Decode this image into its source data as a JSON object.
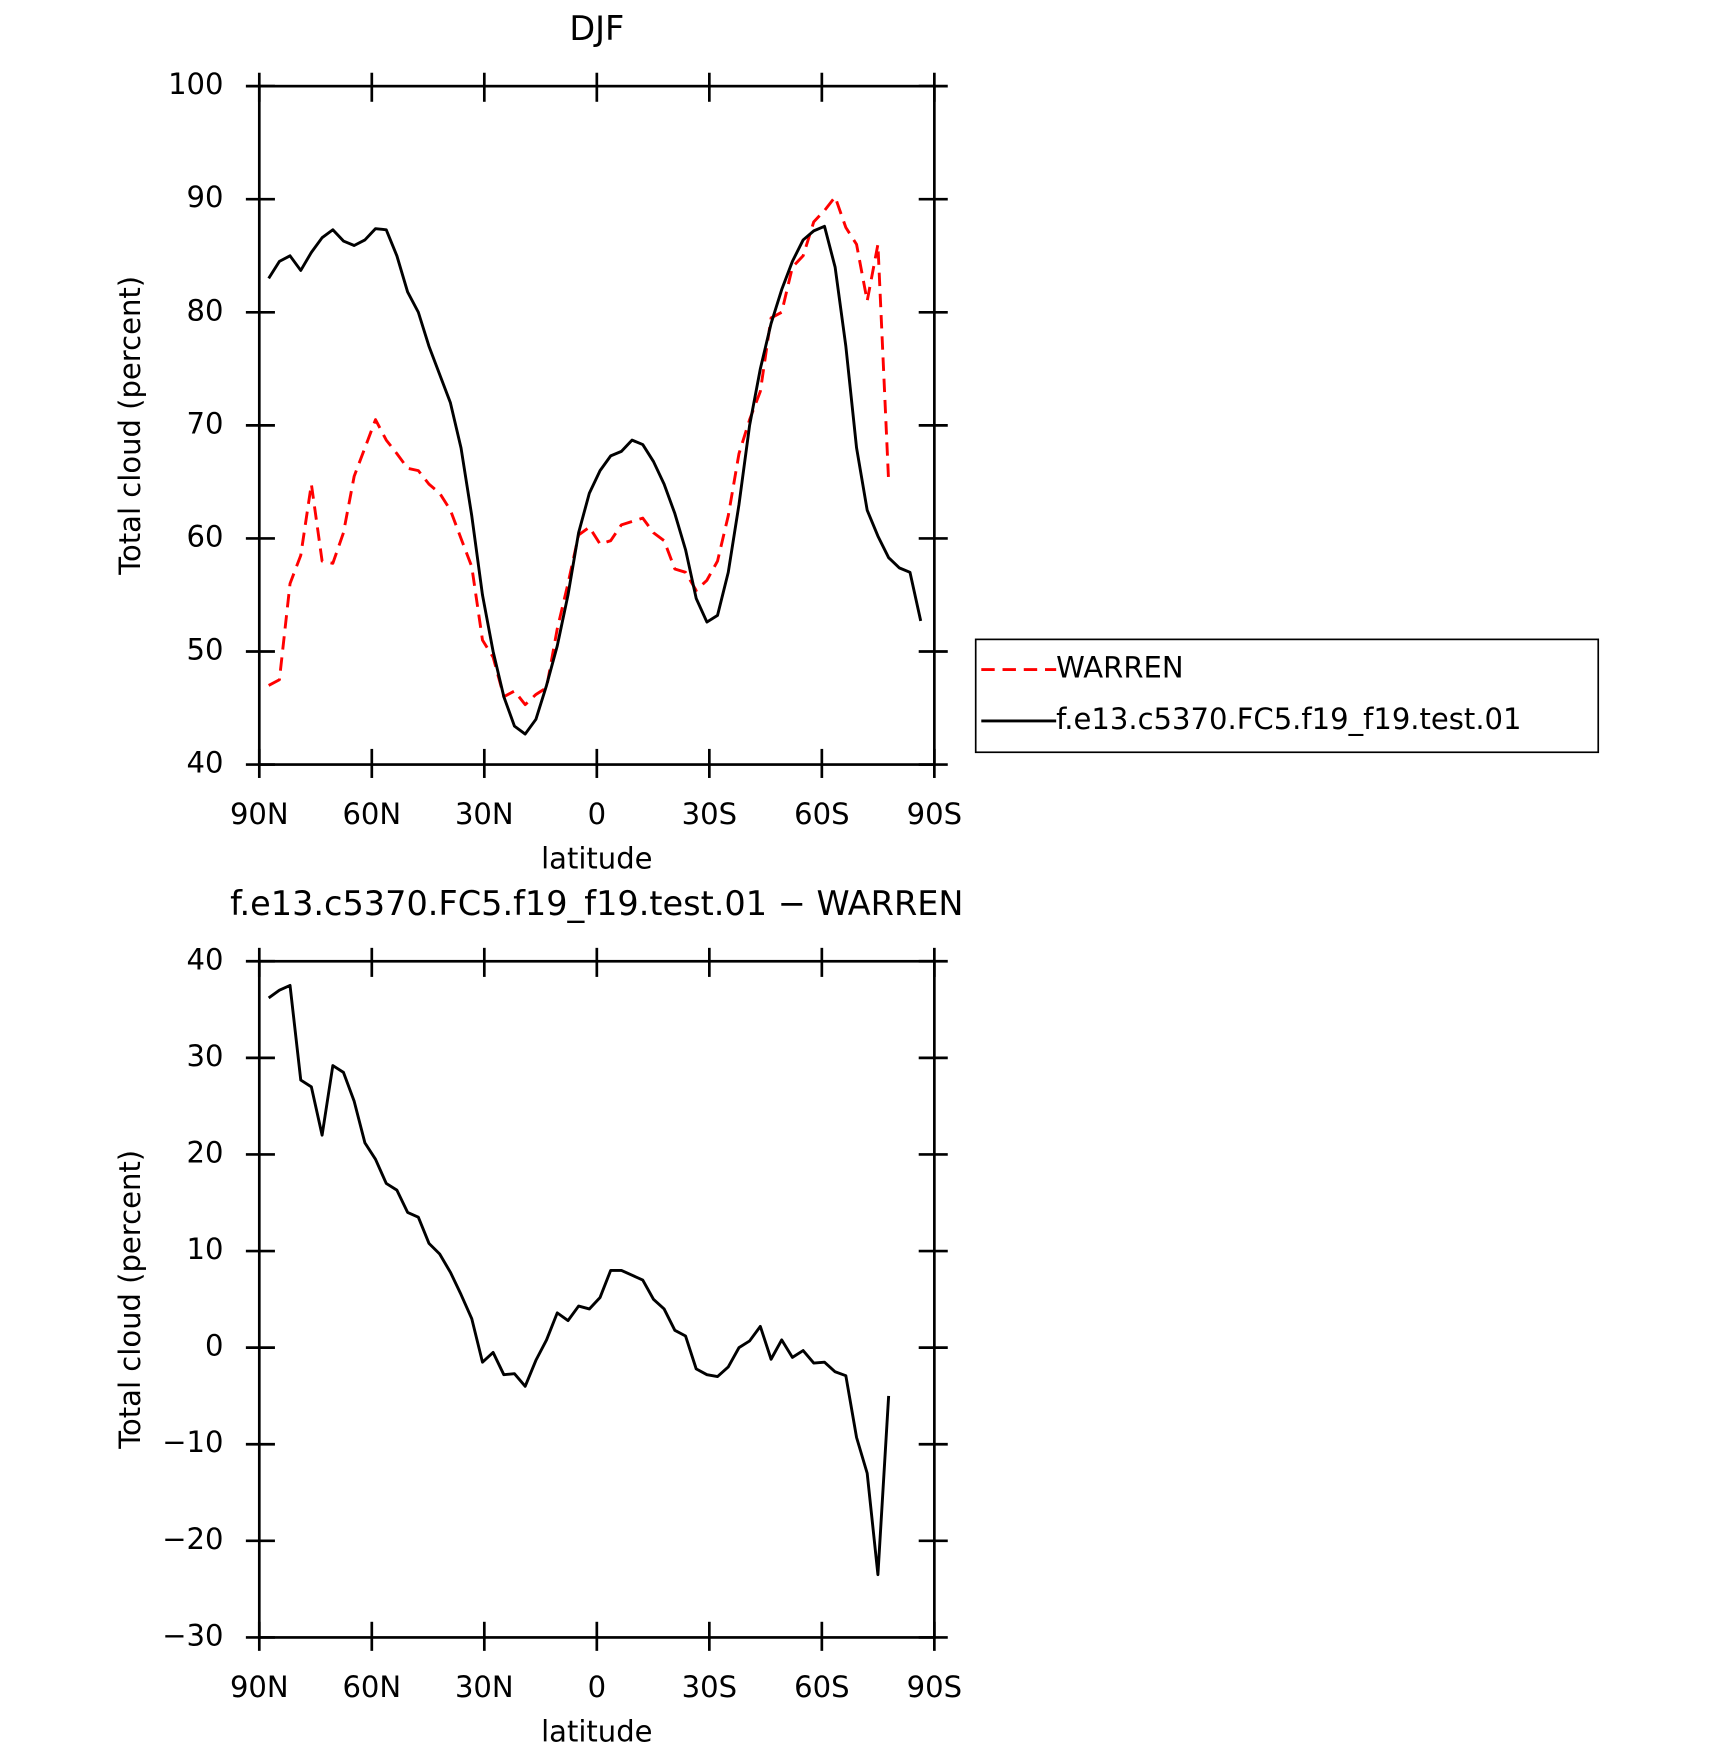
{
  "chart_data": [
    {
      "type": "line",
      "title": "DJF",
      "xlabel": "latitude",
      "ylabel": "Total cloud (percent)",
      "x": [
        87.5,
        84.65,
        81.8,
        78.95,
        76.1,
        73.25,
        70.4,
        67.55,
        64.7,
        61.85,
        59,
        56.15,
        53.3,
        50.45,
        47.6,
        44.75,
        41.9,
        39.05,
        36.2,
        33.35,
        30.5,
        27.65,
        24.8,
        21.95,
        19.1,
        16.25,
        13.4,
        10.55,
        7.7,
        4.85,
        2,
        -0.85,
        -3.7,
        -6.55,
        -9.4,
        -12.25,
        -15.1,
        -17.95,
        -20.8,
        -23.65,
        -26.5,
        -29.35,
        -32.2,
        -35.05,
        -37.9,
        -40.75,
        -43.6,
        -46.45,
        -49.3,
        -52.15,
        -55,
        -57.85,
        -60.7,
        -63.55,
        -66.4,
        -69.25,
        -72.1,
        -74.95,
        -77.8,
        -80.65,
        -83.5,
        -86.35
      ],
      "xlim": [
        90,
        -90
      ],
      "xticks": [
        {
          "value": 90,
          "label": "90N"
        },
        {
          "value": 60,
          "label": "60N"
        },
        {
          "value": 30,
          "label": "30N"
        },
        0,
        {
          "value": -30,
          "label": "30S"
        },
        {
          "value": -60,
          "label": "60S"
        },
        {
          "value": -90,
          "label": "90S"
        }
      ],
      "ylim": [
        40,
        100
      ],
      "yticks": [
        40,
        50,
        60,
        70,
        80,
        90,
        100
      ],
      "legend": "right",
      "series": [
        {
          "name": "WARREN",
          "color": "#ff0000",
          "dashed": true,
          "values": [
            47,
            47.5,
            56,
            58.5,
            64.8,
            58,
            57.8,
            60.5,
            65.5,
            68,
            70.5,
            68.7,
            67.5,
            66.2,
            66,
            64.8,
            64,
            62.5,
            60,
            57.5,
            51,
            49.5,
            46,
            46.5,
            45.3,
            46.2,
            46.8,
            52,
            56,
            60.3,
            61,
            59.5,
            59.8,
            61.2,
            61.5,
            61.8,
            60.5,
            59.8,
            57.3,
            57,
            55.4,
            56.3,
            58,
            62,
            67.5,
            70.5,
            73,
            79.5,
            80,
            84,
            85,
            88,
            89,
            90.2,
            87.5,
            86,
            81,
            86,
            65,
            null,
            null,
            null
          ]
        },
        {
          "name": "f.e13.c5370.FC5.f19_f19.test.01",
          "color": "#000000",
          "dashed": false,
          "values": [
            83,
            84.5,
            85,
            83.7,
            85.3,
            86.6,
            87.3,
            86.3,
            85.9,
            86.4,
            87.4,
            87.3,
            85,
            81.8,
            80,
            77,
            74.5,
            72,
            68,
            62,
            55,
            50,
            46,
            43.4,
            42.7,
            44,
            47,
            50.5,
            55,
            60.5,
            64,
            66,
            67.3,
            67.7,
            68.7,
            68.3,
            66.8,
            64.8,
            62.2,
            59,
            54.7,
            52.6,
            53.2,
            57,
            63,
            70,
            75,
            79,
            82,
            84.5,
            86.4,
            87.2,
            87.6,
            84,
            77,
            68,
            62.5,
            60.2,
            58.3,
            57.4,
            57,
            52.7
          ]
        }
      ]
    },
    {
      "type": "line",
      "title": "f.e13.c5370.FC5.f19_f19.test.01 − WARREN",
      "xlabel": "latitude",
      "ylabel": "Total cloud (percent)",
      "x": [
        87.5,
        84.65,
        81.8,
        78.95,
        76.1,
        73.25,
        70.4,
        67.55,
        64.7,
        61.85,
        59,
        56.15,
        53.3,
        50.45,
        47.6,
        44.75,
        41.9,
        39.05,
        36.2,
        33.35,
        30.5,
        27.65,
        24.8,
        21.95,
        19.1,
        16.25,
        13.4,
        10.55,
        7.7,
        4.85,
        2,
        -0.85,
        -3.7,
        -6.55,
        -9.4,
        -12.25,
        -15.1,
        -17.95,
        -20.8,
        -23.65,
        -26.5,
        -29.35,
        -32.2,
        -35.05,
        -37.9,
        -40.75,
        -43.6,
        -46.45,
        -49.3,
        -52.15,
        -55,
        -57.85,
        -60.7,
        -63.55,
        -66.4,
        -69.25,
        -72.1,
        -74.95,
        -77.8,
        -80.65,
        -83.5,
        -86.35
      ],
      "xlim": [
        90,
        -90
      ],
      "xticks": [
        {
          "value": 90,
          "label": "90N"
        },
        {
          "value": 60,
          "label": "60N"
        },
        {
          "value": 30,
          "label": "30N"
        },
        0,
        {
          "value": -30,
          "label": "30S"
        },
        {
          "value": -60,
          "label": "60S"
        },
        {
          "value": -90,
          "label": "90S"
        }
      ],
      "ylim": [
        -30,
        40
      ],
      "yticks": [
        {
          "value": -30,
          "label": "−30"
        },
        {
          "value": -20,
          "label": "−20"
        },
        {
          "value": -10,
          "label": "−10"
        },
        0,
        10,
        20,
        30,
        40
      ],
      "color": "#000000",
      "values": [
        36.2,
        37,
        37.5,
        27.7,
        27,
        22,
        29.2,
        28.5,
        25.5,
        21.2,
        19.5,
        17,
        16.3,
        14,
        13.5,
        10.8,
        9.7,
        7.8,
        5.5,
        3,
        -1.5,
        -0.5,
        -2.8,
        -2.7,
        -4,
        -1.3,
        0.8,
        3.6,
        2.8,
        4.3,
        4,
        5.2,
        8,
        8,
        7.5,
        7,
        5,
        4,
        1.8,
        1.2,
        -2.2,
        -2.8,
        -3,
        -2,
        0,
        0.7,
        2.2,
        -1.2,
        0.8,
        -1,
        -0.3,
        -1.6,
        -1.5,
        -2.5,
        -2.9,
        -9.3,
        -13,
        -23.5,
        -5,
        null,
        null,
        null
      ]
    }
  ]
}
